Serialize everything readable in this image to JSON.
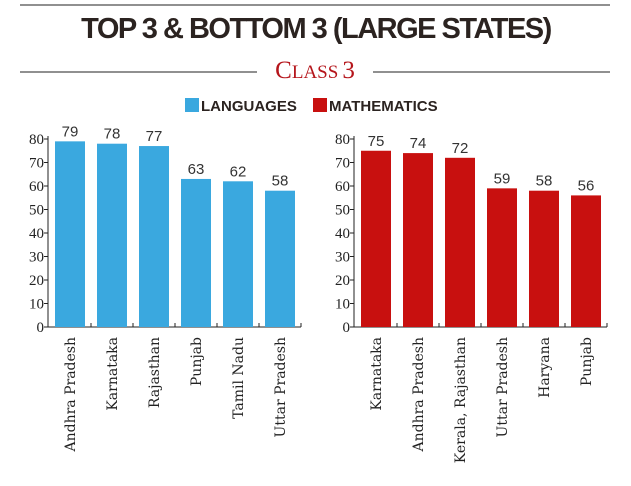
{
  "header": {
    "title": "TOP 3 & BOTTOM 3 (LARGE STATES)",
    "subtitle_cap": "C",
    "subtitle_rest": "LASS",
    "subtitle_num": "3"
  },
  "legend": [
    {
      "label": "LANGUAGES",
      "color": "#3aa8df"
    },
    {
      "label": "MATHEMATICS",
      "color": "#c8100f"
    }
  ],
  "chart_data": [
    {
      "type": "bar",
      "title": "",
      "series_name": "LANGUAGES",
      "color": "#3aa8df",
      "categories": [
        "Andhra Pradesh",
        "Karnataka",
        "Rajasthan",
        "Punjab",
        "Tamil Nadu",
        "Uttar Pradesh"
      ],
      "values": [
        79,
        78,
        77,
        63,
        62,
        58
      ],
      "ylim": [
        0,
        80
      ],
      "yticks": [
        0,
        10,
        20,
        30,
        40,
        50,
        60,
        70,
        80
      ],
      "grid": false
    },
    {
      "type": "bar",
      "title": "",
      "series_name": "MATHEMATICS",
      "color": "#c8100f",
      "categories": [
        "Karnataka",
        "Andhra Pradesh",
        "Kerala, Rajasthan",
        "Uttar Pradesh",
        "Haryana",
        "Punjab"
      ],
      "values": [
        75,
        74,
        72,
        59,
        58,
        56
      ],
      "ylim": [
        0,
        80
      ],
      "yticks": [
        0,
        10,
        20,
        30,
        40,
        50,
        60,
        70,
        80
      ],
      "grid": false
    }
  ]
}
